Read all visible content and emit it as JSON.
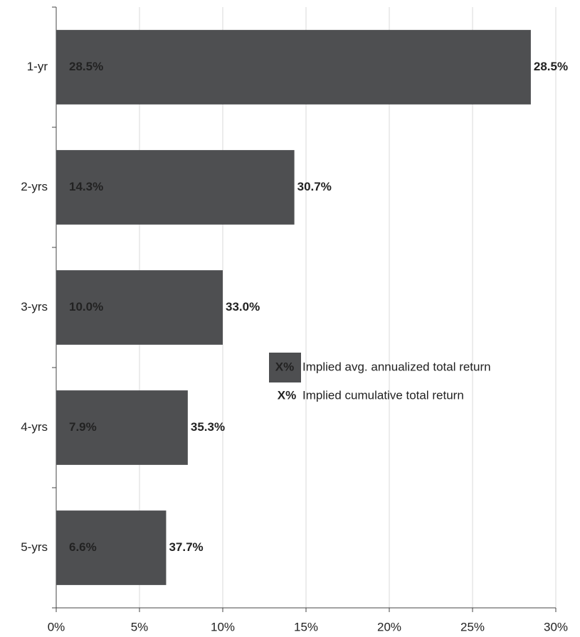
{
  "chart_data": {
    "type": "bar",
    "orientation": "horizontal",
    "categories": [
      "1-yr",
      "2-yrs",
      "3-yrs",
      "4-yrs",
      "5-yrs"
    ],
    "series": [
      {
        "name": "Implied avg. annualized total return",
        "color": "#4e4f51",
        "mark": "bar",
        "values": [
          28.5,
          14.3,
          10.0,
          7.9,
          6.6
        ],
        "value_labels": [
          "28.5%",
          "14.3%",
          "10.0%",
          "7.9%",
          "6.6%"
        ]
      },
      {
        "name": "Implied cumulative total return",
        "color": "#7ab342",
        "mark": "label",
        "values": [
          28.5,
          30.7,
          33.0,
          35.3,
          37.7
        ],
        "value_labels": [
          "28.5%",
          "30.7%",
          "33.0%",
          "35.3%",
          "37.7%"
        ]
      }
    ],
    "legend_symbol": "X%",
    "xlim": [
      0,
      30
    ],
    "xticks": [
      {
        "value": 0,
        "label": "0%"
      },
      {
        "value": 5,
        "label": "5%"
      },
      {
        "value": 10,
        "label": "10%"
      },
      {
        "value": 15,
        "label": "15%"
      },
      {
        "value": 20,
        "label": "20%"
      },
      {
        "value": 25,
        "label": "25%"
      },
      {
        "value": 30,
        "label": "30%"
      }
    ],
    "grid": true
  }
}
